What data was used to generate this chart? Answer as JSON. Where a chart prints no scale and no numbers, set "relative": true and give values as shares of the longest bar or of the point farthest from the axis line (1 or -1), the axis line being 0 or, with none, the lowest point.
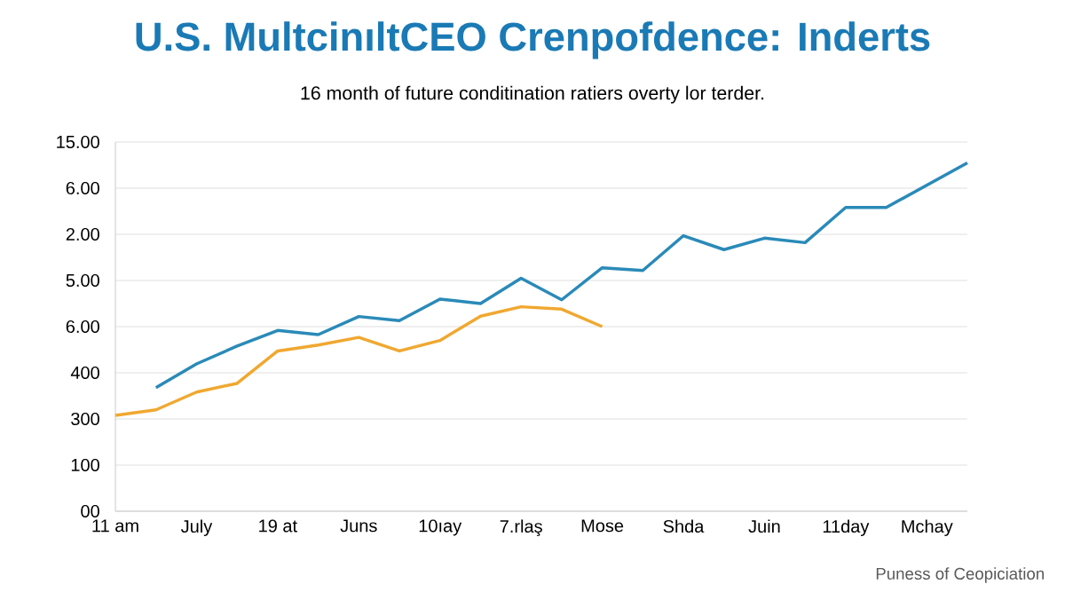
{
  "chart_data": {
    "type": "line",
    "title": "U.S. MultcinıltCEO Crenpofdence: Inderts",
    "subtitle": "16 month of future conditination ratiers overty lor terder.",
    "relative": true,
    "categories": [
      "11 am",
      null,
      "July",
      null,
      "19 at",
      null,
      "Juns",
      null,
      "10ıay",
      null,
      "7.rlaş",
      null,
      "Mose",
      null,
      "Shda",
      null,
      "Juin",
      null,
      "11day",
      null,
      "Mchay",
      null
    ],
    "grid": "y",
    "series": [
      {
        "color": "#2a8ab8",
        "values": [
          null,
          0.355,
          0.423,
          0.474,
          0.519,
          0.507,
          0.559,
          0.547,
          0.609,
          0.596,
          0.669,
          0.607,
          0.699,
          0.691,
          0.791,
          0.751,
          0.784,
          0.771,
          0.872,
          0.872,
          0.936,
          1
        ]
      },
      {
        "color": "#f0a830",
        "values": [
          0.275,
          0.291,
          0.342,
          0.367,
          0.46,
          0.477,
          0.499,
          0.46,
          0.49,
          0.56,
          0.587,
          0.58,
          0.53,
          null,
          null,
          null,
          null,
          null,
          null,
          null,
          null,
          null
        ]
      }
    ],
    "annotations": [
      "00",
      "100",
      "300",
      "400",
      "6.00",
      "5.00",
      "2.00",
      "6.00",
      "15.00",
      "Puness of Ceopiciation"
    ]
  }
}
